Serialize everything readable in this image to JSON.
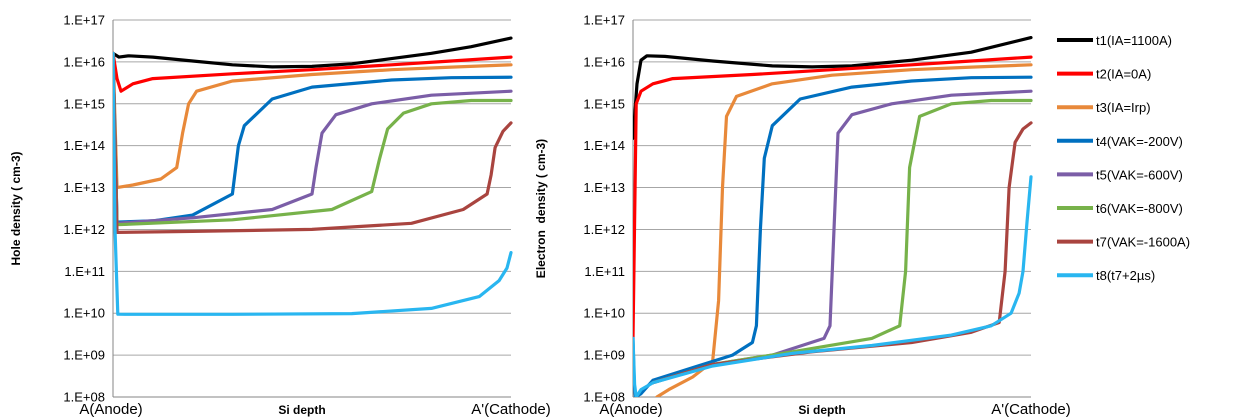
{
  "chart_data": [
    {
      "type": "line",
      "title": "",
      "xlabel": "Si depth",
      "ylabel": "Hole density ( cm-3)",
      "y_scale": "log",
      "ylim": [
        100000000.0,
        1e+17
      ],
      "xlim": [
        0,
        1
      ],
      "y_tick_labels": [
        "1.E+17",
        "1.E+16",
        "1.E+15",
        "1.E+14",
        "1.E+13",
        "1.E+12",
        "1.E+11",
        "1.E+10",
        "1.E+09",
        "1.E+08"
      ],
      "x_tick_labels": [
        "A(Anode)",
        "A'(Cathode)"
      ],
      "grid": true,
      "series": [
        {
          "name": "t1(IA=1100A)",
          "color": "#000000",
          "points": [
            [
              0,
              1.6e+16
            ],
            [
              0.015,
              1.3e+16
            ],
            [
              0.04,
              1.4e+16
            ],
            [
              0.1,
              1.3e+16
            ],
            [
              0.2,
              1.05e+16
            ],
            [
              0.3,
              8500000000000000.0
            ],
            [
              0.4,
              7600000000000000.0
            ],
            [
              0.5,
              7800000000000000.0
            ],
            [
              0.6,
              9000000000000000.0
            ],
            [
              0.7,
              1.2e+16
            ],
            [
              0.8,
              1.6e+16
            ],
            [
              0.9,
              2.3e+16
            ],
            [
              1,
              3.7e+16
            ]
          ]
        },
        {
          "name": "t2(IA=0A)",
          "color": "#ff0000",
          "points": [
            [
              0,
              1.6e+16
            ],
            [
              0.01,
              4000000000000000.0
            ],
            [
              0.02,
              2000000000000000.0
            ],
            [
              0.05,
              3000000000000000.0
            ],
            [
              0.1,
              4000000000000000.0
            ],
            [
              0.3,
              5200000000000000.0
            ],
            [
              0.5,
              6500000000000000.0
            ],
            [
              0.7,
              8500000000000000.0
            ],
            [
              0.85,
              1.05e+16
            ],
            [
              1,
              1.3e+16
            ]
          ]
        },
        {
          "name": "t3(IA=Irp)",
          "color": "#e8893a",
          "points": [
            [
              0,
              1.6e+16
            ],
            [
              0.01,
              10000000000000.0
            ],
            [
              0.05,
              11500000000000.0
            ],
            [
              0.12,
              16000000000000.0
            ],
            [
              0.16,
              30000000000000.0
            ],
            [
              0.175,
              200000000000000.0
            ],
            [
              0.19,
              1000000000000000.0
            ],
            [
              0.21,
              2000000000000000.0
            ],
            [
              0.3,
              3500000000000000.0
            ],
            [
              0.5,
              5000000000000000.0
            ],
            [
              0.7,
              6500000000000000.0
            ],
            [
              0.85,
              7500000000000000.0
            ],
            [
              1,
              8500000000000000.0
            ]
          ]
        },
        {
          "name": "t4(VAK=-200V)",
          "color": "#0070c0",
          "points": [
            [
              0,
              1.6e+16
            ],
            [
              0.01,
              1500000000000.0
            ],
            [
              0.1,
              1600000000000.0
            ],
            [
              0.2,
              2200000000000.0
            ],
            [
              0.3,
              7000000000000.0
            ],
            [
              0.315,
              100000000000000.0
            ],
            [
              0.33,
              300000000000000.0
            ],
            [
              0.4,
              1300000000000000.0
            ],
            [
              0.5,
              2500000000000000.0
            ],
            [
              0.7,
              3700000000000000.0
            ],
            [
              0.85,
              4200000000000000.0
            ],
            [
              1,
              4300000000000000.0
            ]
          ]
        },
        {
          "name": "t5(VAK=-600V)",
          "color": "#7b5ea7",
          "points": [
            [
              0,
              1.6e+16
            ],
            [
              0.01,
              1400000000000.0
            ],
            [
              0.2,
              1900000000000.0
            ],
            [
              0.4,
              3000000000000.0
            ],
            [
              0.5,
              7000000000000.0
            ],
            [
              0.51,
              30000000000000.0
            ],
            [
              0.525,
              200000000000000.0
            ],
            [
              0.56,
              550000000000000.0
            ],
            [
              0.65,
              1000000000000000.0
            ],
            [
              0.8,
              1600000000000000.0
            ],
            [
              1,
              2000000000000000.0
            ]
          ]
        },
        {
          "name": "t6(VAK=-800V)",
          "color": "#77b24a",
          "points": [
            [
              0,
              1.6e+16
            ],
            [
              0.01,
              1300000000000.0
            ],
            [
              0.3,
              1700000000000.0
            ],
            [
              0.55,
              3000000000000.0
            ],
            [
              0.65,
              8000000000000.0
            ],
            [
              0.67,
              50000000000000.0
            ],
            [
              0.69,
              250000000000000.0
            ],
            [
              0.73,
              600000000000000.0
            ],
            [
              0.8,
              1000000000000000.0
            ],
            [
              0.9,
              1200000000000000.0
            ],
            [
              1,
              1200000000000000.0
            ]
          ]
        },
        {
          "name": "t7(VAK=-1600A)",
          "color": "#a9443f",
          "points": [
            [
              0,
              1.6e+16
            ],
            [
              0.01,
              850000000000.0
            ],
            [
              0.2,
              900000000000.0
            ],
            [
              0.5,
              1000000000000.0
            ],
            [
              0.75,
              1400000000000.0
            ],
            [
              0.88,
              3000000000000.0
            ],
            [
              0.94,
              7000000000000.0
            ],
            [
              0.95,
              20000000000000.0
            ],
            [
              0.96,
              90000000000000.0
            ],
            [
              0.98,
              220000000000000.0
            ],
            [
              1,
              350000000000000.0
            ]
          ]
        },
        {
          "name": "t8(t7+2µs)",
          "color": "#29b6f0",
          "points": [
            [
              0,
              1.6e+16
            ],
            [
              0.005,
              1000000000000.0
            ],
            [
              0.012,
              9500000000.0
            ],
            [
              0.03,
              9400000000.0
            ],
            [
              0.3,
              9400000000.0
            ],
            [
              0.6,
              9800000000.0
            ],
            [
              0.8,
              13000000000.0
            ],
            [
              0.92,
              25000000000.0
            ],
            [
              0.97,
              60000000000.0
            ],
            [
              0.99,
              120000000000.0
            ],
            [
              1,
              280000000000.0
            ]
          ]
        }
      ]
    },
    {
      "type": "line",
      "title": "",
      "xlabel": "Si depth",
      "ylabel": "Electron  density ( cm-3)",
      "y_scale": "log",
      "ylim": [
        100000000.0,
        1e+17
      ],
      "xlim": [
        0,
        1
      ],
      "y_tick_labels": [
        "1.E+17",
        "1.E+16",
        "1.E+15",
        "1.E+14",
        "1.E+13",
        "1.E+12",
        "1.E+11",
        "1.E+10",
        "1.E+09",
        "1.E+08"
      ],
      "x_tick_labels": [
        "A(Anode)",
        "A'(Cathode)"
      ],
      "grid": true,
      "series": [
        {
          "name": "t1(IA=1100A)",
          "color": "#000000",
          "points": [
            [
              0,
              150000000000000.0
            ],
            [
              0.01,
              3000000000000000.0
            ],
            [
              0.02,
              1.1e+16
            ],
            [
              0.035,
              1.4e+16
            ],
            [
              0.08,
              1.35e+16
            ],
            [
              0.2,
              1.05e+16
            ],
            [
              0.35,
              8000000000000000.0
            ],
            [
              0.45,
              7600000000000000.0
            ],
            [
              0.55,
              8000000000000000.0
            ],
            [
              0.7,
              1.1e+16
            ],
            [
              0.85,
              1.7e+16
            ],
            [
              1,
              3.8e+16
            ]
          ]
        },
        {
          "name": "t2(IA=0A)",
          "color": "#ff0000",
          "points": [
            [
              0,
              2500000000.0
            ],
            [
              0.008,
              1000000000000000.0
            ],
            [
              0.02,
              2000000000000000.0
            ],
            [
              0.05,
              3000000000000000.0
            ],
            [
              0.1,
              4000000000000000.0
            ],
            [
              0.3,
              5000000000000000.0
            ],
            [
              0.5,
              6500000000000000.0
            ],
            [
              0.7,
              8500000000000000.0
            ],
            [
              0.85,
              1.05e+16
            ],
            [
              1,
              1.3e+16
            ]
          ]
        },
        {
          "name": "t3(IA=Irp)",
          "color": "#e8893a",
          "points": [
            [
              0.06,
              100000000.0
            ],
            [
              0.09,
              150000000.0
            ],
            [
              0.15,
              300000000.0
            ],
            [
              0.2,
              700000000.0
            ],
            [
              0.215,
              20000000000.0
            ],
            [
              0.225,
              10000000000000.0
            ],
            [
              0.235,
              500000000000000.0
            ],
            [
              0.26,
              1500000000000000.0
            ],
            [
              0.35,
              3000000000000000.0
            ],
            [
              0.5,
              4800000000000000.0
            ],
            [
              0.7,
              6500000000000000.0
            ],
            [
              0.85,
              7500000000000000.0
            ],
            [
              1,
              8500000000000000.0
            ]
          ]
        },
        {
          "name": "t4(VAK=-200V)",
          "color": "#0070c0",
          "points": [
            [
              0,
              2500000000.0
            ],
            [
              0.003,
              200000000.0
            ],
            [
              0.006,
              100000000.0
            ],
            [
              0.02,
              120000000.0
            ],
            [
              0.05,
              250000000.0
            ],
            [
              0.15,
              500000000.0
            ],
            [
              0.25,
              1000000000.0
            ],
            [
              0.3,
              2000000000.0
            ],
            [
              0.31,
              5000000000.0
            ],
            [
              0.32,
              1000000000000.0
            ],
            [
              0.33,
              50000000000000.0
            ],
            [
              0.35,
              300000000000000.0
            ],
            [
              0.42,
              1300000000000000.0
            ],
            [
              0.55,
              2500000000000000.0
            ],
            [
              0.7,
              3500000000000000.0
            ],
            [
              0.85,
              4200000000000000.0
            ],
            [
              1,
              4300000000000000.0
            ]
          ]
        },
        {
          "name": "t5(VAK=-600V)",
          "color": "#7b5ea7",
          "points": [
            [
              0.05,
              220000000.0
            ],
            [
              0.2,
              600000000.0
            ],
            [
              0.35,
              1000000000.0
            ],
            [
              0.48,
              2500000000.0
            ],
            [
              0.495,
              5000000000.0
            ],
            [
              0.505,
              1000000000000.0
            ],
            [
              0.515,
              200000000000000.0
            ],
            [
              0.55,
              550000000000000.0
            ],
            [
              0.65,
              1000000000000000.0
            ],
            [
              0.8,
              1600000000000000.0
            ],
            [
              1,
              2000000000000000.0
            ]
          ]
        },
        {
          "name": "t6(VAK=-800V)",
          "color": "#77b24a",
          "points": [
            [
              0.05,
              220000000.0
            ],
            [
              0.2,
              600000000.0
            ],
            [
              0.4,
              1200000000.0
            ],
            [
              0.6,
              2500000000.0
            ],
            [
              0.67,
              5000000000.0
            ],
            [
              0.685,
              100000000000.0
            ],
            [
              0.695,
              30000000000000.0
            ],
            [
              0.72,
              500000000000000.0
            ],
            [
              0.8,
              1000000000000000.0
            ],
            [
              0.9,
              1200000000000000.0
            ],
            [
              1,
              1200000000000000.0
            ]
          ]
        },
        {
          "name": "t7(VAK=-1600A)",
          "color": "#a9443f",
          "points": [
            [
              0.05,
              220000000.0
            ],
            [
              0.2,
              600000000.0
            ],
            [
              0.45,
              1200000000.0
            ],
            [
              0.7,
              2000000000.0
            ],
            [
              0.85,
              3500000000.0
            ],
            [
              0.92,
              6000000000.0
            ],
            [
              0.935,
              100000000000.0
            ],
            [
              0.945,
              10000000000000.0
            ],
            [
              0.96,
              120000000000000.0
            ],
            [
              0.98,
              250000000000000.0
            ],
            [
              1,
              350000000000000.0
            ]
          ]
        },
        {
          "name": "t8(t7+2µs)",
          "color": "#29b6f0",
          "points": [
            [
              0,
              2500000000.0
            ],
            [
              0.004,
              200000000.0
            ],
            [
              0.008,
              100000000.0
            ],
            [
              0.02,
              150000000.0
            ],
            [
              0.05,
              220000000.0
            ],
            [
              0.2,
              550000000.0
            ],
            [
              0.4,
              1100000000.0
            ],
            [
              0.6,
              1700000000.0
            ],
            [
              0.8,
              3000000000.0
            ],
            [
              0.9,
              5000000000.0
            ],
            [
              0.95,
              10000000000.0
            ],
            [
              0.97,
              30000000000.0
            ],
            [
              0.98,
              100000000000.0
            ],
            [
              0.99,
              1500000000000.0
            ],
            [
              1,
              18000000000000.0
            ]
          ]
        }
      ]
    }
  ]
}
